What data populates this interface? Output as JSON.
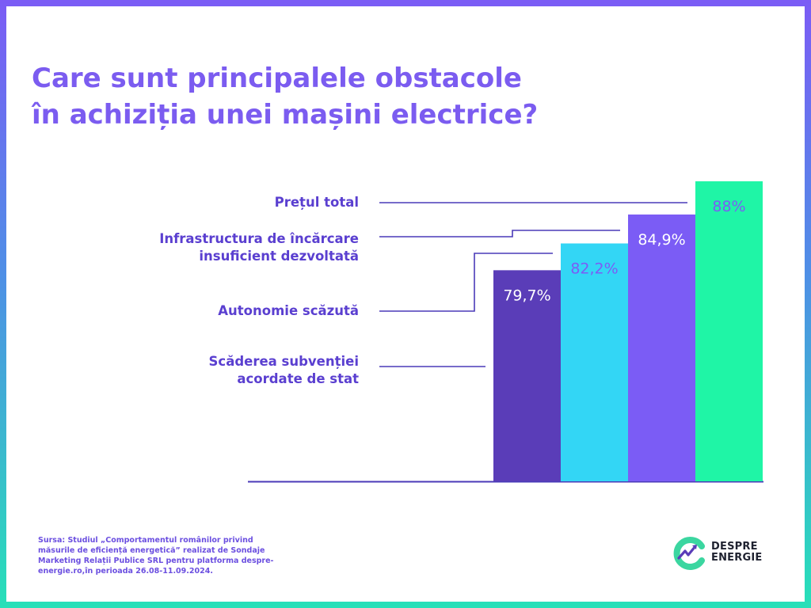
{
  "title": {
    "line1": "Care sunt principalele obstacole",
    "line2": "în achiziția unei mașini electrice?"
  },
  "source": "Sursa: Studiul „Comportamentul românilor privind măsurile de eficiență energetică” realizat de Sondaje Marketing Relații Publice SRL pentru platforma despre-energie.ro,în perioada 26.08-11.09.2024.",
  "logo": {
    "line1": "DESPRE",
    "line2": "ENERGIE",
    "icon": "energy-logo-icon"
  },
  "colors": {
    "title": "#7b5cf0",
    "label_text": "#5a3fd0",
    "leader_lines": "#4a3ab8",
    "frame_top": "#7b5cf5",
    "frame_bottom": "#27e0b8"
  },
  "chart_data": {
    "type": "bar",
    "categories": [
      "Scăderea subvenției acordate de stat",
      "Autonomie scăzută",
      "Infrastructura de încărcare insuficient dezvoltată",
      "Prețul total"
    ],
    "category_label_lines": [
      [
        "Scăderea subvenției",
        "acordate de stat"
      ],
      [
        "Autonomie scăzută"
      ],
      [
        "Infrastructura de încărcare",
        "insuficient dezvoltată"
      ],
      [
        "Prețul total"
      ]
    ],
    "values": [
      79.7,
      82.2,
      84.9,
      88
    ],
    "value_labels": [
      "79,7%",
      "82,2%",
      "84,9%",
      "88%"
    ],
    "colors": [
      "#5a3db8",
      "#33d6f5",
      "#7b5cf5",
      "#1ff5a6"
    ],
    "value_label_colors": [
      "#ffffff",
      "#7b5cf5",
      "#ffffff",
      "#7b5cf5"
    ],
    "ylim": [
      60,
      88
    ],
    "grid": false,
    "legend": "none"
  }
}
